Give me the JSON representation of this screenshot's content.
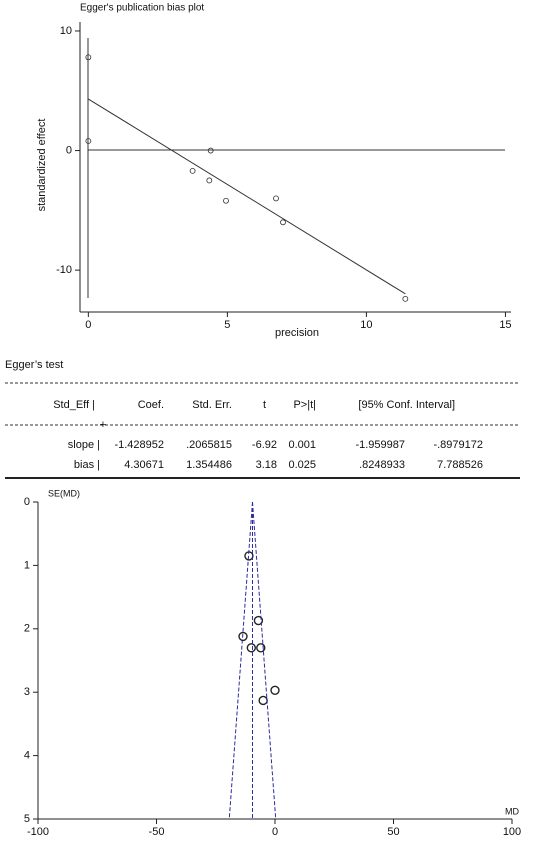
{
  "chart_data": [
    {
      "type": "scatter",
      "title": "Egger's publication bias plot",
      "x_label": "precision",
      "y_label": "standardized effect",
      "xlim": [
        -0.3,
        15.2
      ],
      "ylim": [
        -13.5,
        10.75
      ],
      "xticks": [
        0,
        5,
        10,
        15
      ],
      "yticks": [
        -10,
        0,
        10
      ],
      "series": [
        {
          "type": "scatter",
          "color": "#333333",
          "x": [
            0,
            0,
            3.75,
            4.35,
            4.4,
            4.95,
            6.75,
            7.0,
            11.4
          ],
          "values": [
            7.8,
            0.8,
            -1.7,
            -2.5,
            0,
            -4.2,
            -4.0,
            -6.0,
            -12.4
          ]
        },
        {
          "type": "line",
          "color": "#333333",
          "x": [
            0,
            11.4
          ],
          "values": [
            4.31,
            -11.98
          ]
        }
      ]
    },
    {
      "type": "scatter",
      "x_label": "MD",
      "y_label": "SE(MD)",
      "y_reversed": true,
      "xlim": [
        -100,
        100
      ],
      "ylim": [
        0,
        5
      ],
      "xticks": [
        -100,
        -50,
        0,
        50,
        100
      ],
      "yticks": [
        0,
        1,
        2,
        3,
        4,
        5
      ],
      "series": [
        {
          "type": "scatter",
          "color": "#222222",
          "x": [
            -11,
            -7,
            -13.5,
            -10,
            -6,
            0,
            -5
          ],
          "values": [
            0.85,
            1.87,
            2.12,
            2.3,
            2.3,
            2.97,
            3.13
          ]
        },
        {
          "type": "dashed",
          "color": "#2a2a9a",
          "x": [
            -9.5,
            -9.5
          ],
          "values": [
            0,
            5
          ]
        },
        {
          "type": "dashed",
          "color": "#2a2a9a",
          "x": [
            -9.5,
            -19.3
          ],
          "values": [
            0,
            5
          ]
        },
        {
          "type": "dashed",
          "color": "#2a2a9a",
          "x": [
            -9.5,
            0.3
          ],
          "values": [
            0,
            5
          ]
        }
      ]
    }
  ],
  "table": {
    "title": "Egger’s test",
    "header": [
      "Std_Eff |",
      "Coef.",
      "Std. Err.",
      "t",
      "P>|t|",
      "[95% Conf. Interval]"
    ],
    "rows": [
      [
        "slope |",
        "-1.428952",
        ".2065815",
        "-6.92",
        "0.001",
        "-1.959987",
        "-.8979172"
      ],
      [
        "bias |",
        "4.30671",
        "1.354486",
        "3.18",
        "0.025",
        ".8248933",
        "7.788526"
      ]
    ]
  }
}
